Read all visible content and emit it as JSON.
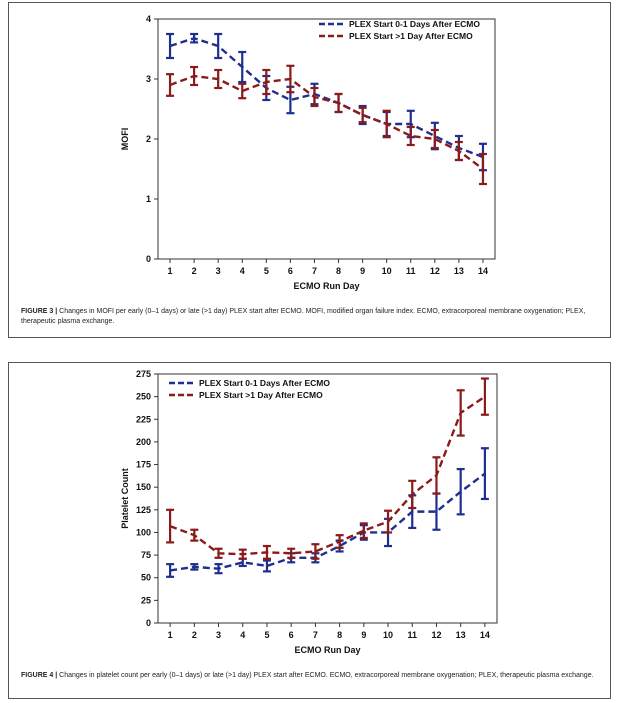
{
  "figures": [
    {
      "caption_label": "FIGURE 3 |",
      "caption_text": " Changes in MOFI per early (0–1 days) or late (>1 day) PLEX start after ECMO. MOFI, modified organ failure index. ECMO, extracorporeal membrane oxygenation; PLEX, therapeutic plasma exchange.",
      "chart_data": {
        "type": "line",
        "xlabel": "ECMO Run Day",
        "ylabel": "MOFI",
        "x": [
          1,
          2,
          3,
          4,
          5,
          6,
          7,
          8,
          9,
          10,
          11,
          12,
          13,
          14
        ],
        "xlim": [
          0.5,
          14.5
        ],
        "ylim": [
          0,
          4
        ],
        "yticks": [
          0,
          1,
          2,
          3,
          4
        ],
        "grid": false,
        "legend_position": "top-right",
        "series": [
          {
            "name": "PLEX Start 0-1 Days After ECMO",
            "color": "#1f2f8f",
            "values": [
              3.55,
              3.68,
              3.55,
              3.2,
              2.85,
              2.65,
              2.75,
              2.6,
              2.4,
              2.25,
              2.25,
              2.05,
              1.85,
              1.7
            ],
            "err": [
              0.2,
              0.07,
              0.2,
              0.25,
              0.2,
              0.22,
              0.17,
              0.15,
              0.15,
              0.2,
              0.22,
              0.22,
              0.2,
              0.22
            ]
          },
          {
            "name": "PLEX Start >1 Day After ECMO",
            "color": "#8b1a1a",
            "values": [
              2.9,
              3.05,
              3.0,
              2.8,
              2.95,
              3.0,
              2.7,
              2.6,
              2.4,
              2.25,
              2.05,
              2.0,
              1.8,
              1.5
            ],
            "err": [
              0.18,
              0.15,
              0.15,
              0.12,
              0.2,
              0.22,
              0.15,
              0.15,
              0.12,
              0.22,
              0.15,
              0.15,
              0.15,
              0.25
            ]
          }
        ]
      }
    },
    {
      "caption_label": "FIGURE 4 |",
      "caption_text": " Changes in platelet count per early (0–1 days) or late (>1 day) PLEX start after ECMO. ECMO, extracorporeal membrane oxygenation; PLEX, therapeutic plasma exchange.",
      "chart_data": {
        "type": "line",
        "xlabel": "ECMO Run Day",
        "ylabel": "Platelet Count",
        "x": [
          1,
          2,
          3,
          4,
          5,
          6,
          7,
          8,
          9,
          10,
          11,
          12,
          13,
          14
        ],
        "xlim": [
          0.5,
          14.5
        ],
        "ylim": [
          0,
          275
        ],
        "yticks": [
          0,
          25,
          50,
          75,
          100,
          125,
          150,
          175,
          200,
          225,
          250,
          275
        ],
        "grid": false,
        "legend_position": "top-left",
        "series": [
          {
            "name": "PLEX Start 0-1 Days After ECMO",
            "color": "#1f2f8f",
            "values": [
              58,
              62,
              60,
              67,
              63,
              72,
              72,
              85,
              100,
              100,
              123,
              123,
              145,
              165
            ],
            "err": [
              7,
              3,
              5,
              4,
              6,
              5,
              5,
              6,
              8,
              15,
              18,
              20,
              25,
              28
            ]
          },
          {
            "name": "PLEX Start >1 Day After ECMO",
            "color": "#8b1a1a",
            "values": [
              107,
              97,
              77,
              76,
              78,
              77,
              79,
              90,
              102,
              112,
              142,
              163,
              232,
              250
            ],
            "err": [
              18,
              6,
              5,
              5,
              7,
              5,
              8,
              7,
              8,
              12,
              15,
              20,
              25,
              20
            ]
          }
        ]
      }
    }
  ]
}
